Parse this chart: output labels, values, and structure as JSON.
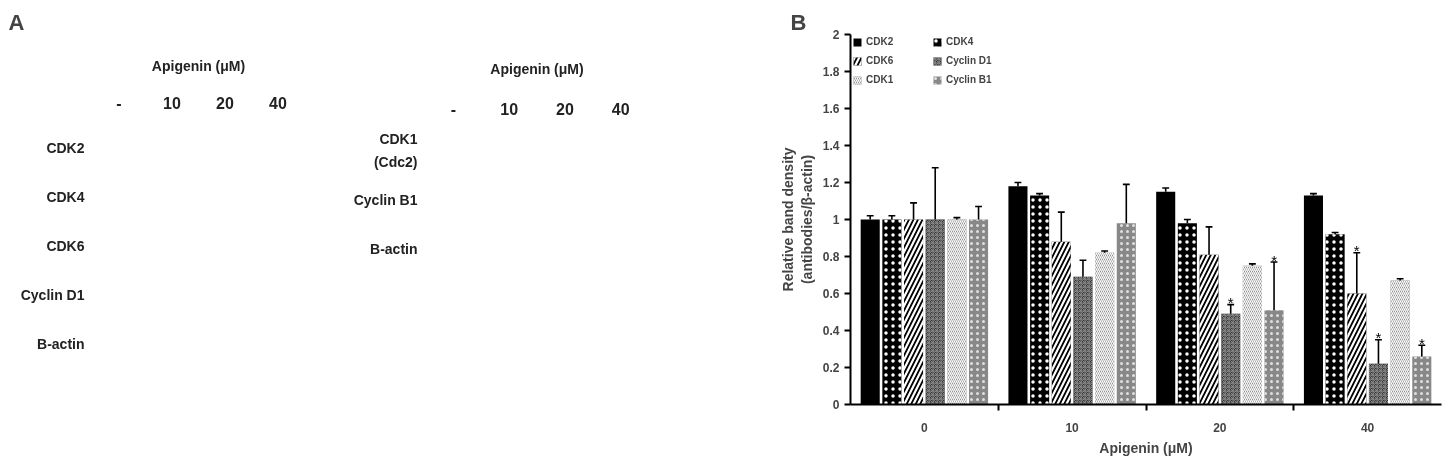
{
  "chart_data": [
    {
      "type": "other",
      "title": "A",
      "xlabel": "Apigenin (μM)",
      "categories": [
        "-",
        "10",
        "20",
        "40"
      ],
      "y_categories": [
        "CDK2",
        "CDK4",
        "CDK6",
        "Cyclin D1",
        "B-actin"
      ]
    },
    {
      "type": "other",
      "xlabel": "Apigenin (μM)",
      "categories": [
        "-",
        "10",
        "20",
        "40"
      ],
      "y_categories": [
        "CDK1\n(Cdc2)",
        "Cyclin B1",
        "B-actin"
      ]
    },
    {
      "type": "bar",
      "title": "B",
      "xlabel": "Apigenin (μM)",
      "ylabel": "Relative band density\n(antibodies/β-actin)",
      "categories": [
        "0",
        "10",
        "20",
        "40"
      ],
      "ylim": [
        0,
        2
      ],
      "yticks": [
        0,
        0.2,
        0.4,
        0.6,
        0.8,
        1,
        1.2,
        1.4,
        1.6,
        1.8,
        2
      ],
      "legend": "top left",
      "series": [
        {
          "name": "CDK2",
          "color": "#000000",
          "values": [
            1.0,
            1.18,
            1.15,
            1.13
          ],
          "errors": [
            [
              1.0,
              1.02
            ],
            [
              1.18,
              1.2
            ],
            [
              1.15,
              1.17
            ],
            [
              1.13,
              1.14
            ]
          ]
        },
        {
          "name": "CDK4",
          "color": "#000000",
          "values": [
            1.0,
            1.13,
            0.98,
            0.92
          ],
          "errors": [
            [
              1.0,
              1.02
            ],
            [
              1.13,
              1.14
            ],
            [
              0.98,
              1.0
            ],
            [
              0.92,
              0.93
            ]
          ]
        },
        {
          "name": "CDK6",
          "color": "#000000",
          "values": [
            1.0,
            0.88,
            0.81,
            0.6
          ],
          "errors": [
            [
              1.0,
              1.09
            ],
            [
              0.88,
              1.04
            ],
            [
              0.81,
              0.96
            ],
            [
              0.6,
              0.82
            ]
          ],
          "value_labels": [
            null,
            null,
            null,
            "*"
          ]
        },
        {
          "name": "Cyclin D1",
          "color": "#333333",
          "values": [
            1.0,
            0.69,
            0.49,
            0.22
          ],
          "errors": [
            [
              1.0,
              1.28
            ],
            [
              0.69,
              0.78
            ],
            [
              0.49,
              0.54
            ],
            [
              0.22,
              0.35
            ]
          ],
          "value_labels": [
            null,
            null,
            "*",
            "*"
          ]
        },
        {
          "name": "CDK1",
          "color": "#666666",
          "values": [
            1.0,
            0.82,
            0.75,
            0.67
          ],
          "errors": [
            [
              1.0,
              1.01
            ],
            [
              0.82,
              0.83
            ],
            [
              0.75,
              0.76
            ],
            [
              0.67,
              0.68
            ]
          ]
        },
        {
          "name": "Cyclin B1",
          "color": "#888888",
          "values": [
            1.0,
            0.98,
            0.51,
            0.26
          ],
          "errors": [
            [
              1.0,
              1.07
            ],
            [
              0.98,
              1.19
            ],
            [
              0.51,
              0.77
            ],
            [
              0.26,
              0.32
            ]
          ],
          "value_labels": [
            null,
            null,
            "*",
            "*"
          ]
        }
      ]
    }
  ]
}
